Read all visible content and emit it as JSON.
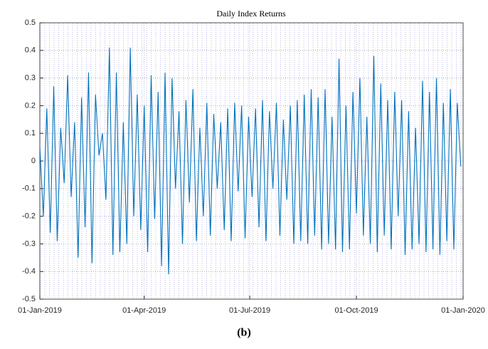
{
  "chart_data": {
    "type": "line",
    "title": "Daily Index Returns",
    "caption": "(b)",
    "color": "#0072bd",
    "grid": true,
    "x": [
      "2019-01-01",
      "2019-01-04",
      "2019-01-07",
      "2019-01-10",
      "2019-01-13",
      "2019-01-16",
      "2019-01-19",
      "2019-01-22",
      "2019-01-25",
      "2019-01-28",
      "2019-01-31",
      "2019-02-03",
      "2019-02-06",
      "2019-02-09",
      "2019-02-12",
      "2019-02-15",
      "2019-02-18",
      "2019-02-21",
      "2019-02-24",
      "2019-02-27",
      "2019-03-02",
      "2019-03-05",
      "2019-03-08",
      "2019-03-11",
      "2019-03-14",
      "2019-03-17",
      "2019-03-20",
      "2019-03-23",
      "2019-03-26",
      "2019-03-29",
      "2019-04-01",
      "2019-04-04",
      "2019-04-07",
      "2019-04-10",
      "2019-04-13",
      "2019-04-16",
      "2019-04-19",
      "2019-04-22",
      "2019-04-25",
      "2019-04-28",
      "2019-05-01",
      "2019-05-04",
      "2019-05-07",
      "2019-05-10",
      "2019-05-13",
      "2019-05-16",
      "2019-05-19",
      "2019-05-22",
      "2019-05-25",
      "2019-05-28",
      "2019-05-31",
      "2019-06-03",
      "2019-06-06",
      "2019-06-09",
      "2019-06-12",
      "2019-06-15",
      "2019-06-18",
      "2019-06-21",
      "2019-06-24",
      "2019-06-27",
      "2019-06-30",
      "2019-07-03",
      "2019-07-06",
      "2019-07-09",
      "2019-07-12",
      "2019-07-15",
      "2019-07-18",
      "2019-07-21",
      "2019-07-24",
      "2019-07-27",
      "2019-07-30",
      "2019-08-02",
      "2019-08-05",
      "2019-08-08",
      "2019-08-11",
      "2019-08-14",
      "2019-08-17",
      "2019-08-20",
      "2019-08-23",
      "2019-08-26",
      "2019-08-29",
      "2019-09-01",
      "2019-09-04",
      "2019-09-07",
      "2019-09-10",
      "2019-09-13",
      "2019-09-16",
      "2019-09-19",
      "2019-09-22",
      "2019-09-25",
      "2019-09-28",
      "2019-10-01",
      "2019-10-04",
      "2019-10-07",
      "2019-10-10",
      "2019-10-13",
      "2019-10-16",
      "2019-10-19",
      "2019-10-22",
      "2019-10-25",
      "2019-10-28",
      "2019-10-31",
      "2019-11-03",
      "2019-11-06",
      "2019-11-09",
      "2019-11-12",
      "2019-11-15",
      "2019-11-18",
      "2019-11-21",
      "2019-11-24",
      "2019-11-27",
      "2019-11-30",
      "2019-12-03",
      "2019-12-06",
      "2019-12-09",
      "2019-12-12",
      "2019-12-15",
      "2019-12-18",
      "2019-12-21",
      "2019-12-24",
      "2019-12-27",
      "2019-12-30"
    ],
    "values": [
      0.05,
      -0.2,
      0.19,
      -0.26,
      0.27,
      -0.29,
      0.12,
      -0.08,
      0.31,
      -0.13,
      0.14,
      -0.35,
      0.23,
      -0.24,
      0.32,
      -0.37,
      0.24,
      0.02,
      0.1,
      -0.14,
      0.41,
      -0.34,
      0.32,
      -0.33,
      0.14,
      -0.3,
      0.41,
      -0.2,
      0.24,
      -0.25,
      0.2,
      -0.33,
      0.31,
      -0.21,
      0.25,
      -0.38,
      0.32,
      -0.41,
      0.3,
      -0.1,
      0.18,
      -0.3,
      0.22,
      -0.15,
      0.26,
      -0.29,
      0.12,
      -0.2,
      0.21,
      -0.27,
      0.17,
      -0.1,
      0.14,
      -0.25,
      0.19,
      -0.29,
      0.21,
      -0.11,
      0.2,
      -0.28,
      0.16,
      -0.13,
      0.19,
      -0.24,
      0.22,
      -0.29,
      0.18,
      -0.1,
      0.21,
      -0.27,
      0.15,
      -0.14,
      0.2,
      -0.3,
      0.22,
      -0.29,
      0.24,
      -0.3,
      0.26,
      -0.27,
      0.23,
      -0.32,
      0.26,
      -0.3,
      0.16,
      -0.32,
      0.37,
      -0.33,
      0.2,
      -0.32,
      0.25,
      -0.19,
      0.3,
      -0.27,
      0.16,
      -0.3,
      0.38,
      -0.33,
      0.28,
      -0.27,
      0.22,
      -0.32,
      0.25,
      -0.2,
      0.22,
      -0.34,
      0.18,
      -0.32,
      0.12,
      -0.3,
      0.29,
      -0.33,
      0.25,
      -0.32,
      0.3,
      -0.34,
      0.21,
      -0.29,
      0.26,
      -0.32,
      0.21,
      -0.02
    ],
    "xlim": [
      "2019-01-01",
      "2020-01-01"
    ],
    "xticks": [
      {
        "value": "2019-01-01",
        "label": "01-Jan-2019"
      },
      {
        "value": "2019-04-01",
        "label": "01-Apr-2019"
      },
      {
        "value": "2019-07-01",
        "label": "01-Jul-2019"
      },
      {
        "value": "2019-10-01",
        "label": "01-Oct-2019"
      },
      {
        "value": "2020-01-01",
        "label": "01-Jan-2020"
      }
    ],
    "ylim": [
      -0.5,
      0.5
    ],
    "yticks": [
      -0.5,
      -0.4,
      -0.3,
      -0.2,
      -0.1,
      0,
      0.1,
      0.2,
      0.3,
      0.4,
      0.5
    ]
  }
}
